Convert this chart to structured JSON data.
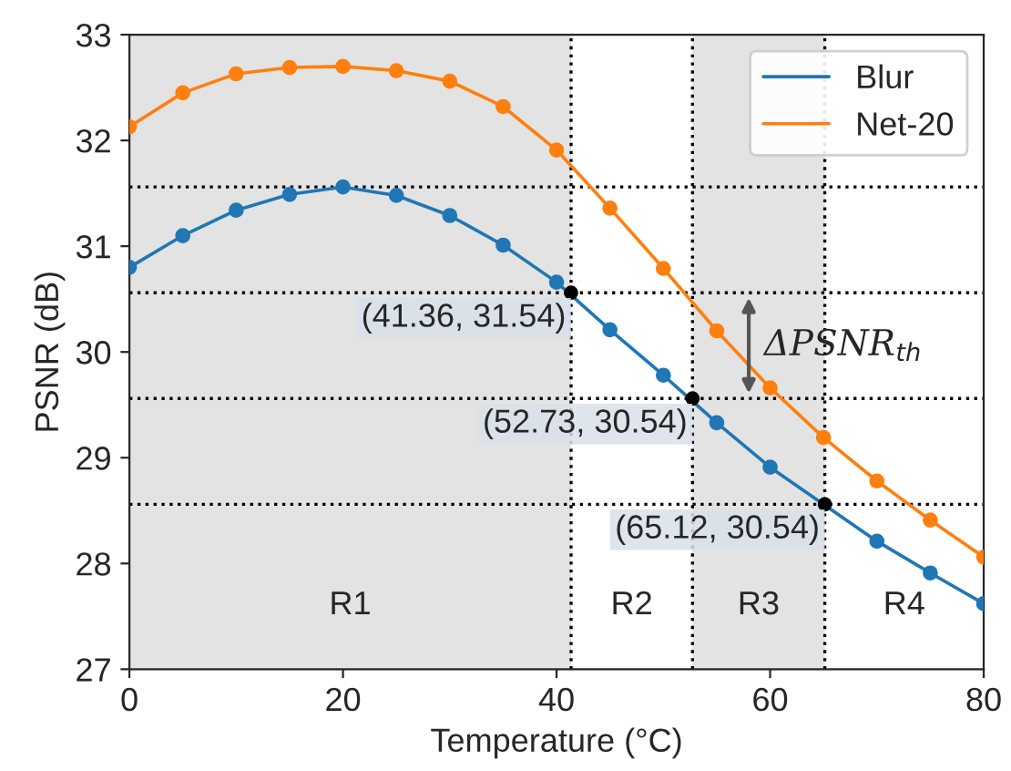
{
  "chart_data": {
    "type": "line",
    "xlabel": "Temperature (°C)",
    "ylabel": "PSNR (dB)",
    "x": [
      0,
      5,
      10,
      15,
      20,
      25,
      30,
      35,
      40,
      45,
      50,
      55,
      60,
      65,
      70,
      75,
      80
    ],
    "series": [
      {
        "name": "Blur",
        "color": "#1f77b4",
        "values": [
          30.8,
          31.1,
          31.34,
          31.49,
          31.56,
          31.48,
          31.29,
          31.01,
          30.66,
          30.21,
          29.78,
          29.33,
          28.91,
          null,
          28.21,
          27.91,
          27.62
        ]
      },
      {
        "name": "Net-20",
        "color": "#ff7f0e",
        "values": [
          32.13,
          32.45,
          32.63,
          32.69,
          32.7,
          32.66,
          32.56,
          32.32,
          31.91,
          31.36,
          30.79,
          30.2,
          29.66,
          29.19,
          28.78,
          28.41,
          28.06
        ]
      },
      {
        "type": "scatter",
        "color": "#000000",
        "x": [
          41.36,
          52.73,
          65.12
        ],
        "values": [
          30.56,
          29.56,
          28.56
        ]
      }
    ],
    "marker": "circle",
    "line_style": "solid",
    "xlim": [
      0,
      80
    ],
    "xticks": [
      0,
      20,
      40,
      60,
      80
    ],
    "ylim": [
      27,
      33
    ],
    "yticks": [
      27,
      28,
      29,
      30,
      31,
      32,
      33
    ],
    "grid": false,
    "legend": "top right",
    "ref_lines": [
      {
        "axis": "y",
        "value": 31.56,
        "color": "#000000",
        "line_style": "dotted"
      },
      {
        "axis": "y",
        "value": 30.56,
        "color": "#000000",
        "line_style": "dotted"
      },
      {
        "axis": "y",
        "value": 29.56,
        "color": "#000000",
        "line_style": "dotted"
      },
      {
        "axis": "y",
        "value": 28.56,
        "color": "#000000",
        "line_style": "dotted"
      },
      {
        "axis": "x",
        "value": 41.36,
        "color": "#000000",
        "line_style": "dotted"
      },
      {
        "axis": "x",
        "value": 52.73,
        "color": "#000000",
        "line_style": "dotted"
      },
      {
        "axis": "x",
        "value": 65.12,
        "color": "#000000",
        "line_style": "dotted"
      }
    ],
    "bands": [
      {
        "axis": "x",
        "from": 0,
        "to": 41.36,
        "color": "#e3e3e3"
      },
      {
        "axis": "x",
        "from": 52.73,
        "to": 65.12,
        "color": "#e3e3e3"
      }
    ],
    "annotations": [
      {
        "text": "(41.36, 31.54)",
        "x": 41.36,
        "y": 30.56
      },
      {
        "text": "(52.73, 30.54)",
        "x": 52.73,
        "y": 29.56
      },
      {
        "text": "(65.12, 30.54)",
        "x": 65.12,
        "y": 28.56
      },
      "R1",
      "R2",
      "R3",
      "R4",
      "ΔPSNR$_{th}$"
    ]
  }
}
